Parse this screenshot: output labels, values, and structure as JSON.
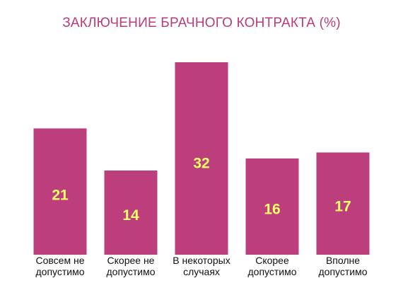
{
  "chart_data": {
    "type": "bar",
    "title": "ЗАКЛЮЧЕНИЕ БРАЧНОГО КОНТРАКТА (%)",
    "categories": [
      [
        "Совсем не",
        "допустимо"
      ],
      [
        "Скорее не",
        "допустимо"
      ],
      [
        "В некоторых",
        "случаях"
      ],
      [
        "Скорее",
        "допустимо"
      ],
      [
        "Вполне",
        "допустимо"
      ]
    ],
    "values": [
      21,
      14,
      32,
      16,
      17
    ],
    "ylim": [
      0,
      32
    ],
    "grid": false,
    "legend": "none",
    "colors": {
      "bar": "#bd3e7d",
      "value_label": "#ffff66",
      "title": "#b83c7c"
    }
  }
}
